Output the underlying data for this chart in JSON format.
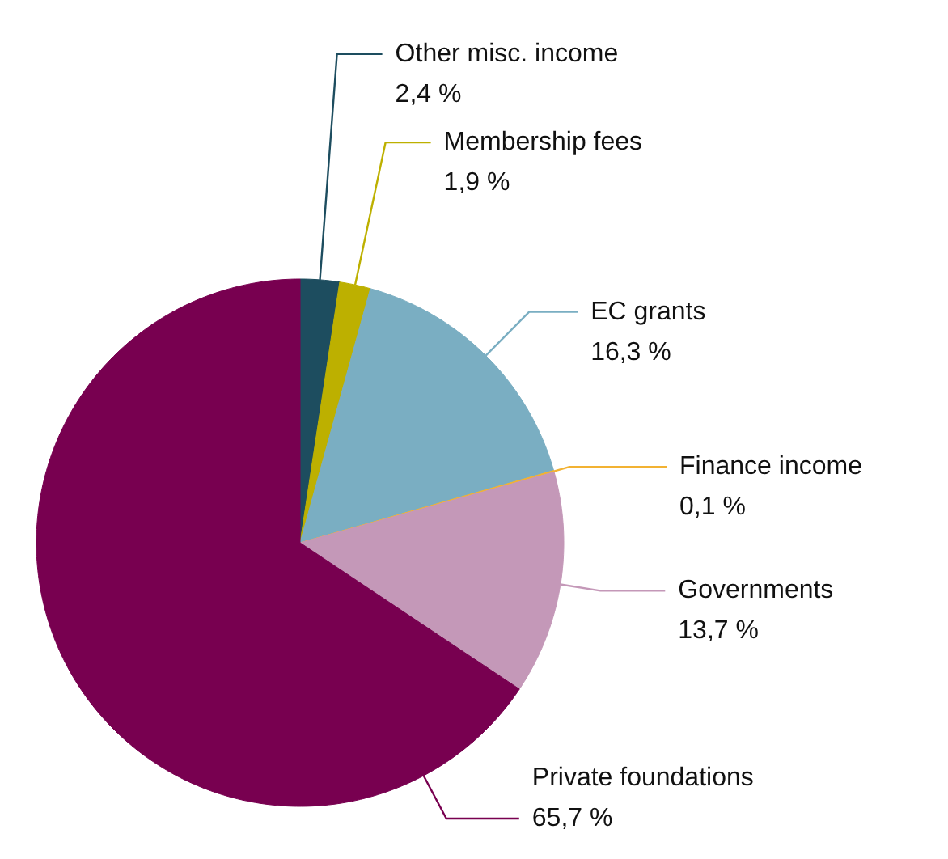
{
  "chart_data": {
    "type": "pie",
    "categories": [
      "Other misc. income",
      "Membership fees",
      "EC grants",
      "Finance income",
      "Governments",
      "Private foundations"
    ],
    "values": [
      2.4,
      1.9,
      16.3,
      0.1,
      13.7,
      65.7
    ],
    "colors": [
      "#1d4d5f",
      "#bdb000",
      "#7aaec2",
      "#f2b233",
      "#c498b8",
      "#780050"
    ],
    "value_labels": [
      "2,4 %",
      "1,9 %",
      "16,3 %",
      "0,1 %",
      "13,7 %",
      "65,7 %"
    ]
  }
}
